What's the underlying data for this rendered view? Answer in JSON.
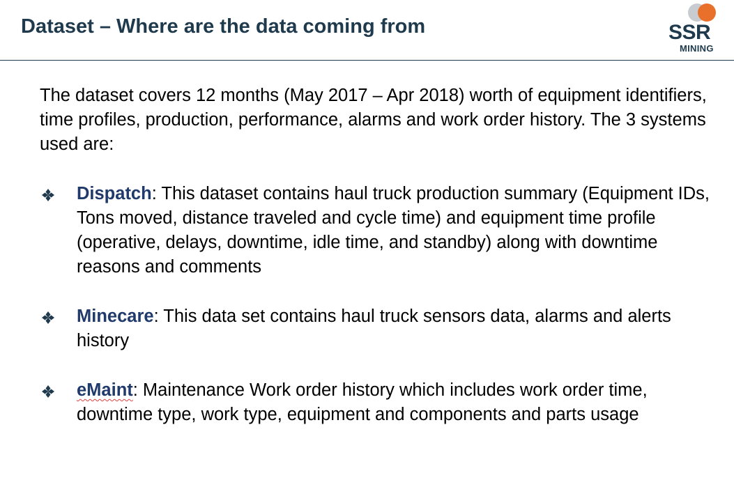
{
  "header": {
    "title": "Dataset – Where are the data coming from"
  },
  "logo": {
    "wordmark": "SSR",
    "tagline": "MINING",
    "colors": {
      "navy": "#1f3a4d",
      "orange": "#e8702a",
      "grey": "#c8ccd0"
    }
  },
  "intro": "The dataset covers 12 months (May 2017 – Apr 2018) worth of equipment identifiers, time profiles, production, performance, alarms and work order history.  The 3 systems used are:",
  "bullet_icon": "four-diamond-bullet-icon",
  "systems": [
    {
      "name": "Dispatch",
      "description": ": This dataset contains haul truck production summary (Equipment IDs, Tons moved, distance traveled and cycle time) and equipment time profile (operative, delays, downtime, idle time, and standby) along with downtime reasons and comments"
    },
    {
      "name": "Minecare",
      "description": ": This data set contains haul truck sensors data, alarms and alerts history"
    },
    {
      "name": "eMaint",
      "description": ": Maintenance Work order history which includes work order time, downtime type, work type, equipment and components and parts usage"
    }
  ]
}
